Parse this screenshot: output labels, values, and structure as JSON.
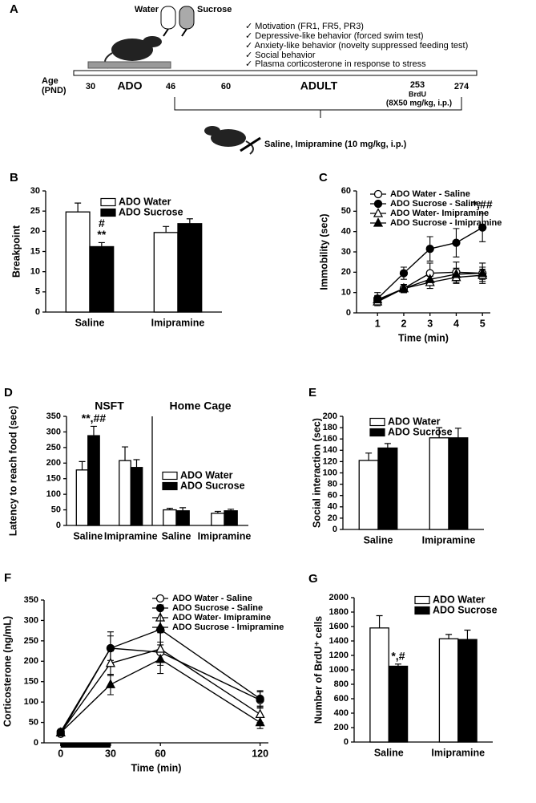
{
  "diagram": {
    "label": "A",
    "bottles": [
      "Water",
      "Sucrose"
    ],
    "measures": [
      "✓ Motivation (FR1, FR5, PR3)",
      "✓ Depressive-like behavior (forced swim test)",
      "✓ Anxiety-like behavior (novelty suppressed feeding test)",
      "✓ Social behavior",
      "✓ Plasma corticosterone in response to stress"
    ],
    "age_label": [
      "Age",
      "(PND)"
    ],
    "ages": [
      "30",
      "46",
      "60",
      "253",
      "274"
    ],
    "periods": [
      "ADO",
      "ADULT"
    ],
    "brdu": [
      "BrdU",
      "(8X50 mg/kg, i.p.)"
    ],
    "treatment": "Saline, Imipramine (10 mg/kg, i.p.)"
  },
  "chart_data": [
    {
      "type": "bar",
      "panel_label": "B",
      "ylabel": "Breakpoint",
      "categories": [
        "Saline",
        "Imipramine"
      ],
      "series": [
        {
          "name": "ADO Water",
          "color": "#ffffff",
          "values": [
            24.8,
            19.7
          ],
          "errors": [
            2.2,
            1.5
          ]
        },
        {
          "name": "ADO Sucrose",
          "color": "#000000",
          "values": [
            16.2,
            21.9
          ],
          "errors": [
            1.0,
            1.2
          ]
        }
      ],
      "annotations": [
        {
          "text": "#",
          "series": "ADO Sucrose",
          "category": "Saline"
        },
        {
          "text": "**",
          "series": "ADO Sucrose",
          "category": "Saline"
        }
      ],
      "ylim": [
        0,
        30
      ],
      "yticks": [
        0,
        5,
        10,
        15,
        20,
        25,
        30
      ]
    },
    {
      "type": "line",
      "panel_label": "C",
      "xlabel": "Time (min)",
      "ylabel": "Immobility (sec)",
      "x": [
        1,
        2,
        3,
        4,
        5
      ],
      "xlim": [
        0.2,
        5.3
      ],
      "xticks": [
        1,
        2,
        3,
        4,
        5
      ],
      "ylim": [
        0,
        60
      ],
      "yticks": [
        0,
        10,
        20,
        30,
        40,
        50,
        60
      ],
      "series": [
        {
          "name": "ADO Water - Saline",
          "color": "#ffffff",
          "marker": "circle",
          "values": [
            6,
            12,
            19.5,
            20,
            19.5
          ],
          "errors": [
            2,
            2,
            5,
            5,
            5
          ]
        },
        {
          "name": "ADO Sucrose - Saline",
          "color": "#000000",
          "marker": "circle",
          "values": [
            7,
            19.5,
            31.5,
            34.5,
            42
          ],
          "errors": [
            3,
            3,
            6,
            7,
            7
          ]
        },
        {
          "name": "ADO Water- Imipramine",
          "color": "#ffffff",
          "marker": "triangle",
          "values": [
            5.5,
            12,
            15,
            17.5,
            18.5
          ],
          "errors": [
            2,
            2,
            3,
            3,
            3
          ]
        },
        {
          "name": "ADO Sucrose - Imipramine",
          "color": "#000000",
          "marker": "triangle",
          "values": [
            6.5,
            12,
            16.5,
            19,
            19.5
          ],
          "errors": [
            2,
            2,
            3,
            3,
            3
          ]
        }
      ],
      "annotations": [
        {
          "text": "*,##",
          "series": "ADO Sucrose - Saline",
          "x": 5
        }
      ]
    },
    {
      "type": "bar",
      "panel_label": "D",
      "ylabel": "Latency to reach food (sec)",
      "ylim": [
        0,
        350
      ],
      "yticks": [
        0,
        50,
        100,
        150,
        200,
        250,
        300,
        350
      ],
      "series": [
        {
          "name": "ADO Water",
          "color": "#ffffff"
        },
        {
          "name": "ADO Sucrose",
          "color": "#000000"
        }
      ],
      "subplots": [
        {
          "title": "NSFT",
          "categories": [
            "Saline",
            "Imipramine"
          ],
          "series": [
            {
              "values": [
                178,
                208
              ],
              "errors": [
                27,
                44
              ]
            },
            {
              "values": [
                288,
                186
              ],
              "errors": [
                30,
                25
              ]
            }
          ],
          "annotations": [
            {
              "text": "**,##",
              "series": "ADO Sucrose",
              "category": "Saline"
            }
          ]
        },
        {
          "title": "Home Cage",
          "categories": [
            "Saline",
            "Imipramine"
          ],
          "series": [
            {
              "values": [
                50,
                39
              ],
              "errors": [
                5,
                6
              ]
            },
            {
              "values": [
                47,
                47
              ],
              "errors": [
                10,
                5
              ]
            }
          ]
        }
      ]
    },
    {
      "type": "bar",
      "panel_label": "E",
      "ylabel": "Social interaction (sec)",
      "categories": [
        "Saline",
        "Imipramine"
      ],
      "series": [
        {
          "name": "ADO Water",
          "color": "#ffffff",
          "values": [
            122,
            162
          ],
          "errors": [
            13,
            18
          ]
        },
        {
          "name": "ADO Sucrose",
          "color": "#000000",
          "values": [
            144,
            162
          ],
          "errors": [
            8,
            17
          ]
        }
      ],
      "ylim": [
        0,
        200
      ],
      "yticks": [
        0,
        20,
        40,
        60,
        80,
        100,
        120,
        140,
        160,
        180,
        200
      ]
    },
    {
      "type": "line",
      "panel_label": "F",
      "xlabel": "Time (min)",
      "ylabel": "Corticosterone (ng/mL)",
      "x": [
        0,
        30,
        60,
        120
      ],
      "xlim": [
        -10,
        125
      ],
      "xticks": [
        0,
        30,
        60,
        120
      ],
      "ylim": [
        0,
        350
      ],
      "yticks": [
        0,
        50,
        100,
        150,
        200,
        250,
        300,
        350
      ],
      "highlight": [
        0,
        30
      ],
      "series": [
        {
          "name": "ADO Water - Saline",
          "color": "#ffffff",
          "marker": "circle",
          "values": [
            22,
            232,
            222,
            105
          ],
          "errors": [
            5,
            30,
            25,
            20
          ]
        },
        {
          "name": "ADO Sucrose - Saline",
          "color": "#000000",
          "marker": "circle",
          "values": [
            27,
            232,
            278,
            108
          ],
          "errors": [
            5,
            40,
            60,
            20
          ]
        },
        {
          "name": "ADO Water- Imipramine",
          "color": "#ffffff",
          "marker": "triangle",
          "values": [
            25,
            195,
            230,
            70
          ],
          "errors": [
            5,
            30,
            40,
            20
          ]
        },
        {
          "name": "ADO Sucrose - Imipramine",
          "color": "#000000",
          "marker": "triangle",
          "values": [
            25,
            143,
            205,
            50
          ],
          "errors": [
            5,
            25,
            35,
            15
          ]
        }
      ]
    },
    {
      "type": "bar",
      "panel_label": "G",
      "ylabel": "Number of BrdU⁺ cells",
      "categories": [
        "Saline",
        "Imipramine"
      ],
      "series": [
        {
          "name": "ADO Water",
          "color": "#ffffff",
          "values": [
            1580,
            1430
          ],
          "errors": [
            170,
            60
          ]
        },
        {
          "name": "ADO Sucrose",
          "color": "#000000",
          "values": [
            1050,
            1420
          ],
          "errors": [
            30,
            130
          ]
        }
      ],
      "annotations": [
        {
          "text": "*,#",
          "series": "ADO Sucrose",
          "category": "Saline"
        }
      ],
      "ylim": [
        0,
        2000
      ],
      "yticks": [
        0,
        200,
        400,
        600,
        800,
        1000,
        1200,
        1400,
        1600,
        1800,
        2000
      ]
    }
  ]
}
